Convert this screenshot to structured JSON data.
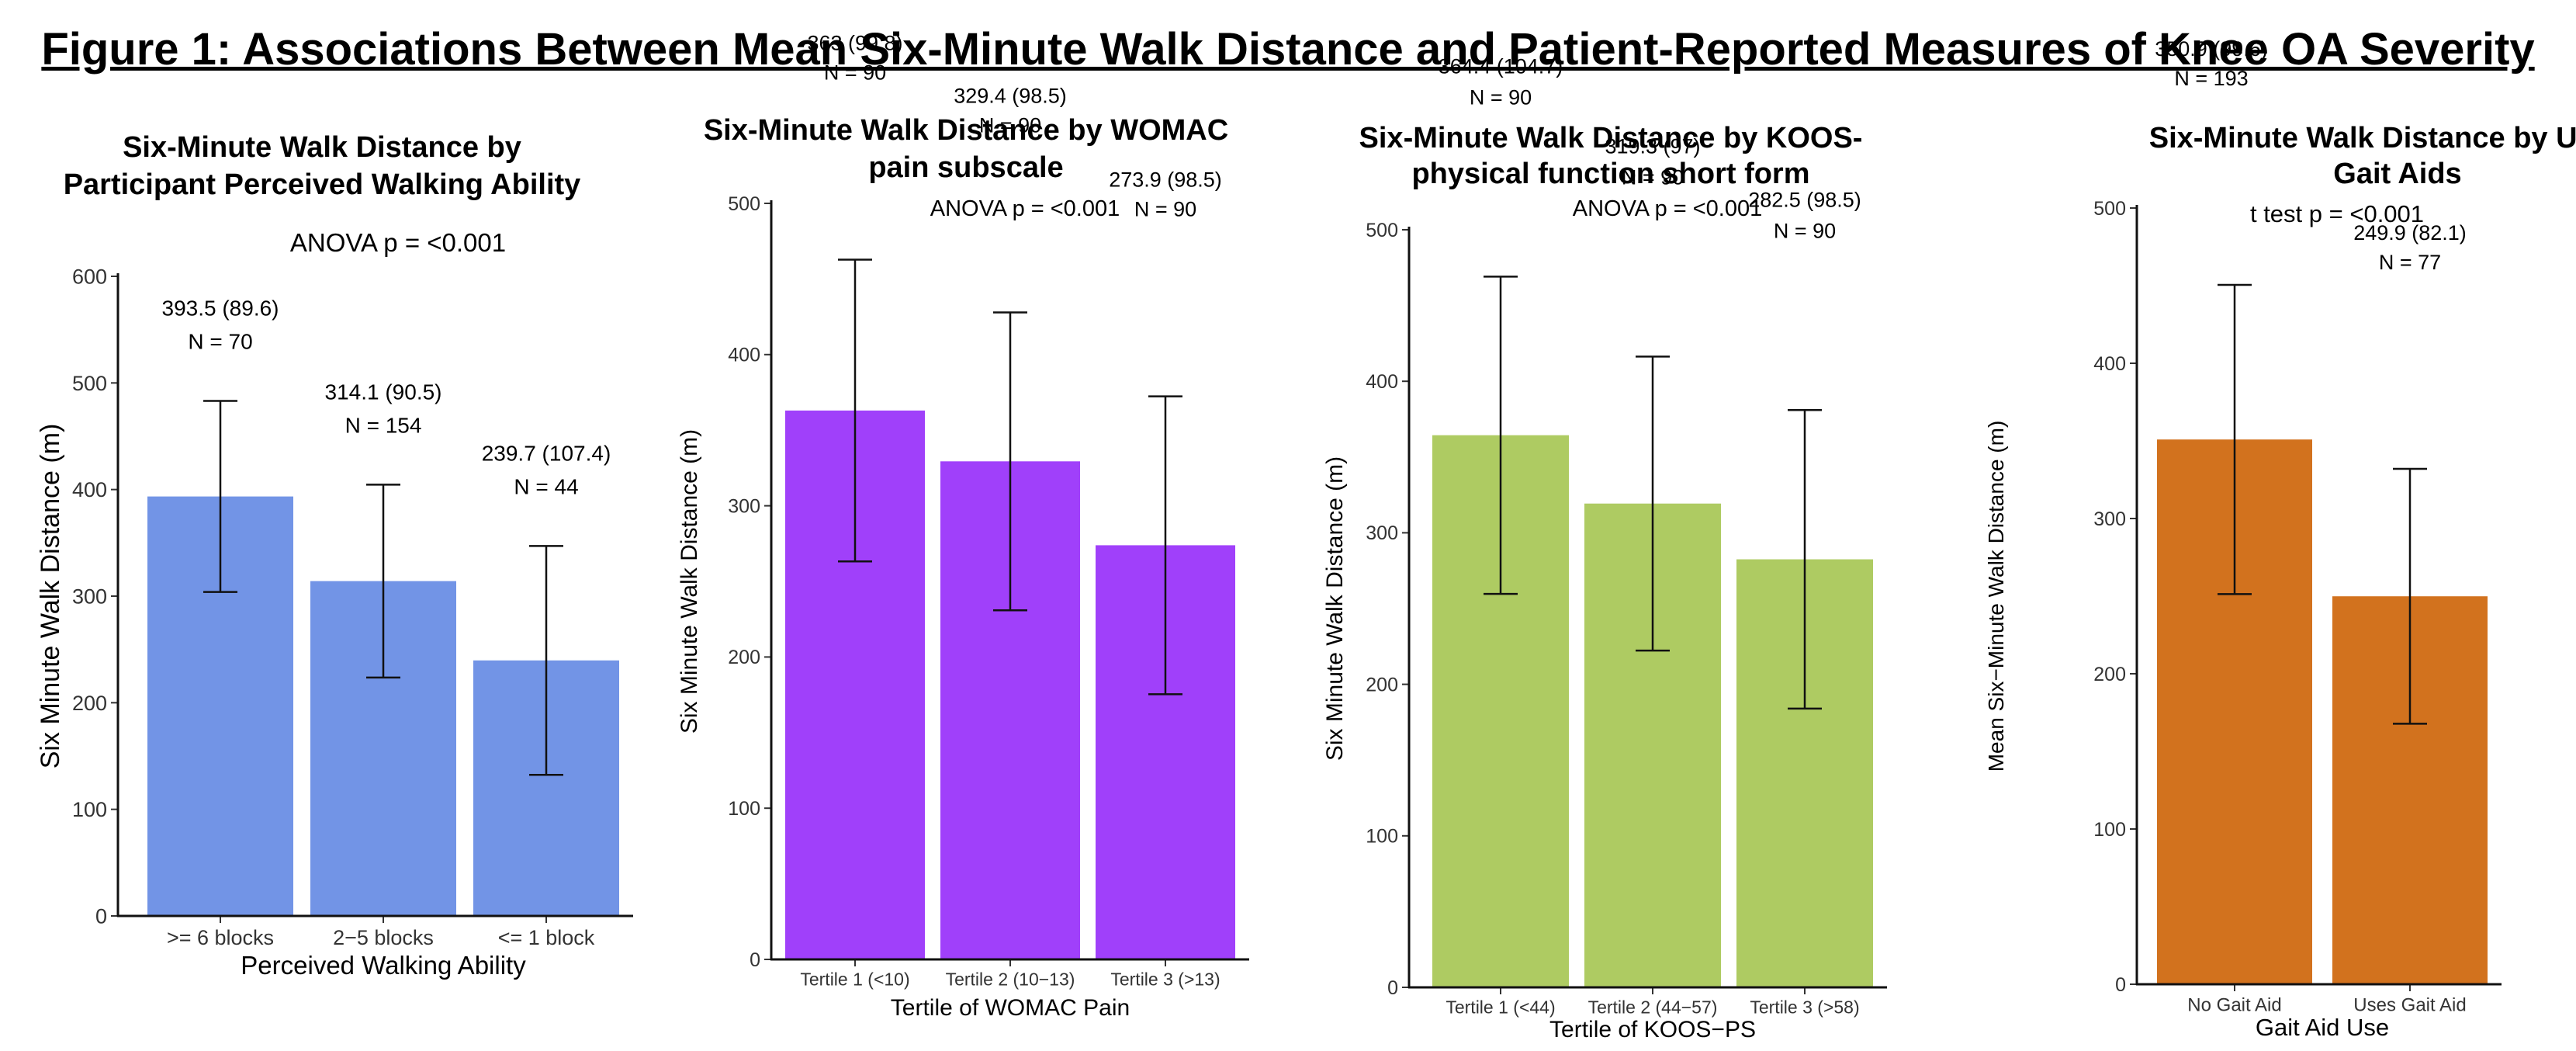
{
  "figure_title": "Figure 1: Associations Between Mean Six-Minute Walk Distance and Patient-Reported Measures of Knee OA Severity",
  "chart_data": [
    {
      "type": "bar",
      "title_lines": [
        "Six-Minute Walk Distance by",
        "Participant Perceived Walking Ability"
      ],
      "subtitle": "ANOVA p = <0.001",
      "xlabel": "Perceived Walking Ability",
      "ylabel": "Six Minute Walk Distance (m)",
      "ylim": [
        0,
        600
      ],
      "yticks": [
        0,
        100,
        200,
        300,
        400,
        500,
        600
      ],
      "color": "#7294E6",
      "categories": [
        ">= 6 blocks",
        "2−5 blocks",
        "<= 1 block"
      ],
      "values": [
        393.5,
        314.1,
        239.7
      ],
      "sd": [
        89.6,
        90.5,
        107.4
      ],
      "value_labels": [
        "393.5 (89.6)",
        "314.1 (90.5)",
        "239.7 (107.4)"
      ],
      "n_labels": [
        "N = 70",
        "N = 154",
        "N = 44"
      ]
    },
    {
      "type": "bar",
      "title_lines": [
        "Six-Minute Walk Distance by WOMAC",
        "pain subscale"
      ],
      "subtitle": "ANOVA p = <0.001",
      "xlabel": "Tertile of WOMAC Pain",
      "ylabel": "Six Minute Walk Distance (m)",
      "ylim": [
        0,
        500
      ],
      "yticks": [
        0,
        100,
        200,
        300,
        400,
        500
      ],
      "color": "#A040FA",
      "categories": [
        "Tertile 1 (<10)",
        "Tertile 2 (10−13)",
        "Tertile 3 (>13)"
      ],
      "values": [
        363,
        329.4,
        273.9
      ],
      "sd": [
        99.8,
        98.5,
        98.5
      ],
      "value_labels": [
        "363 (99.8)",
        "329.4 (98.5)",
        "273.9 (98.5)"
      ],
      "n_labels": [
        "N = 90",
        "N = 90",
        "N = 90"
      ]
    },
    {
      "type": "bar",
      "title_lines": [
        "Six-Minute Walk Distance by KOOS-",
        "physical function short form"
      ],
      "subtitle": "ANOVA p = <0.001",
      "xlabel": "Tertile of KOOS−PS",
      "ylabel": "Six Minute Walk Distance (m)",
      "ylim": [
        0,
        500
      ],
      "yticks": [
        0,
        100,
        200,
        300,
        400,
        500
      ],
      "color": "#AECB62",
      "categories": [
        "Tertile 1 (<44)",
        "Tertile 2 (44−57)",
        "Tertile 3 (>58)"
      ],
      "values": [
        364.4,
        319.3,
        282.5
      ],
      "sd": [
        104.7,
        97,
        98.5
      ],
      "value_labels": [
        "364.4 (104.7)",
        "319.3 (97)",
        "282.5 (98.5)"
      ],
      "n_labels": [
        "N = 90",
        "N = 90",
        "N = 90"
      ]
    },
    {
      "type": "bar",
      "title_lines": [
        "Six-Minute Walk Distance by Use of",
        "Gait Aids"
      ],
      "subtitle": "t test p = <0.001",
      "xlabel": "Gait Aid Use",
      "ylabel": "Mean Six−Minute Walk Distance (m)",
      "ylim": [
        0,
        500
      ],
      "yticks": [
        0,
        100,
        200,
        300,
        400,
        500
      ],
      "color": "#D2721E",
      "categories": [
        "No Gait Aid",
        "Uses Gait Aid"
      ],
      "values": [
        350.9,
        249.9
      ],
      "sd": [
        99.6,
        82.1
      ],
      "value_labels": [
        "350.9 (99.6)",
        "249.9 (82.1)"
      ],
      "n_labels": [
        "N = 193",
        "N = 77"
      ]
    }
  ]
}
